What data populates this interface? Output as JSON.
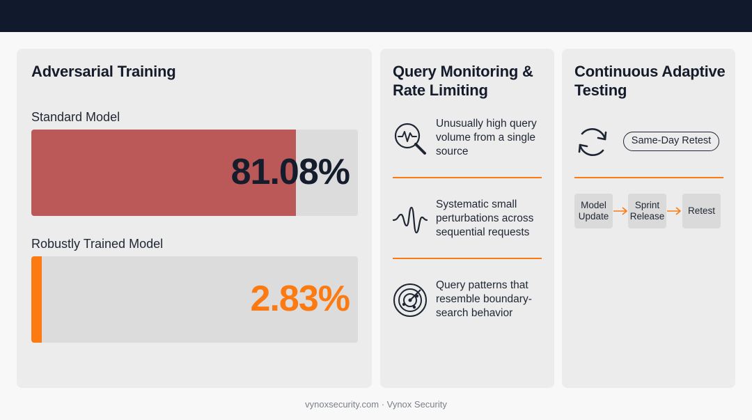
{
  "adversarial": {
    "title": "Adversarial Training",
    "standard": {
      "label": "Standard Model",
      "value_text": "81.08%",
      "fill_fraction": 0.8108
    },
    "robust": {
      "label": "Robustly Trained Model",
      "value_text": "2.83%",
      "fill_fraction": 0.0283
    }
  },
  "monitoring": {
    "title": "Query Monitoring & Rate Limiting",
    "items": [
      {
        "icon": "magnifier-pulse-icon",
        "text": "Unusually high query volume from a single source"
      },
      {
        "icon": "waveform-icon",
        "text": "Systematic small perturbations across sequential requests"
      },
      {
        "icon": "radar-icon",
        "text": "Query patterns that resemble boundary-search behavior"
      }
    ]
  },
  "adaptive": {
    "title": "Continuous Adaptive Testing",
    "retest_icon": "refresh-cycle-icon",
    "pill_label": "Same-Day Retest",
    "steps": [
      "Model Update",
      "Sprint Release",
      "Retest"
    ]
  },
  "colors": {
    "accent": "#fb7a12",
    "standard_fill": "#bb5858",
    "dark": "#151c2c",
    "topbar": "#111a2c"
  },
  "footer": "vynoxsecurity.com · Vynox Security"
}
